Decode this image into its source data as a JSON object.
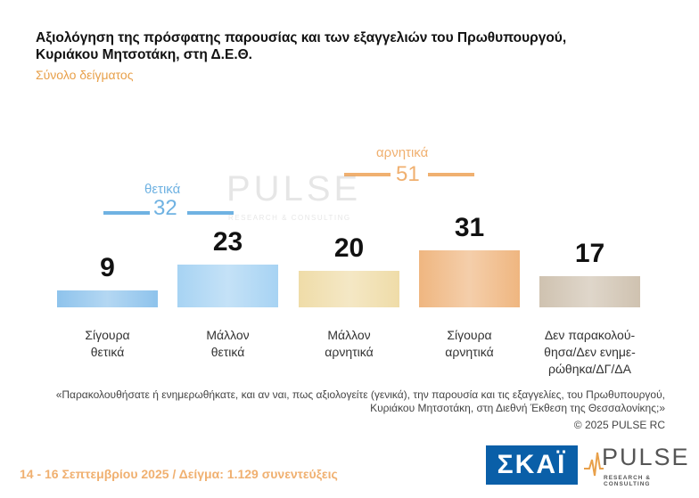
{
  "title": "Αξιολόγηση της πρόσφατης παρουσίας και των εξαγγελιών του Πρωθυπουργού, Κυριάκου Μητσοτάκη, στη Δ.Ε.Θ.",
  "subtitle": "Σύνολο δείγματος",
  "chart_data": {
    "type": "bar",
    "categories": [
      "Σίγουρα θετικά",
      "Μάλλον θετικά",
      "Μάλλον αρνητικά",
      "Σίγουρα αρνητικά",
      "Δεν παρακολού-θησα/Δεν ενημε-ρώθηκα/ΔΓ/ΔΑ"
    ],
    "category_lines": [
      [
        "Σίγουρα",
        "θετικά"
      ],
      [
        "Μάλλον",
        "θετικά"
      ],
      [
        "Μάλλον",
        "αρνητικά"
      ],
      [
        "Σίγουρα",
        "αρνητικά"
      ],
      [
        "Δεν παρακολού-",
        "θησα/Δεν ενημε-",
        "ρώθηκα/ΔΓ/ΔΑ"
      ]
    ],
    "values": [
      9,
      23,
      20,
      31,
      17
    ],
    "value_labels": [
      "9",
      "23",
      "20",
      "31",
      "17"
    ],
    "bar_colors": [
      "#8ec3ec",
      "#a7d3f3",
      "#efdca8",
      "#efb680",
      "#cfc2b0"
    ],
    "ylim": [
      0,
      35
    ],
    "groups": [
      {
        "label": "θετικά",
        "total": "32",
        "color": "#6fb2e2"
      },
      {
        "label": "αρνητικά",
        "total": "51",
        "color": "#f0b070"
      }
    ]
  },
  "watermark": {
    "brand": "PULSE",
    "tagline": "RESEARCH & CONSULTING"
  },
  "question": "«Παρακολουθήσατε ή ενημερωθήκατε, και αν ναι, πως αξιολογείτε (γενικά), την παρουσία και τις εξαγγελίες, του Πρωθυπουργού, Κυριάκου Μητσοτάκη, στη Διεθνή Έκθεση της Θεσσαλονίκης;»",
  "copyright": "© 2025 PULSE RC",
  "footer": "14 - 16 Σεπτεμβρίου 2025 / Δείγμα: 1.129 συνεντεύξεις",
  "logos": {
    "skai": "ΣΚΑΪ",
    "pulse": "PULSE",
    "pulse_sub": "RESEARCH & CONSULTING"
  }
}
